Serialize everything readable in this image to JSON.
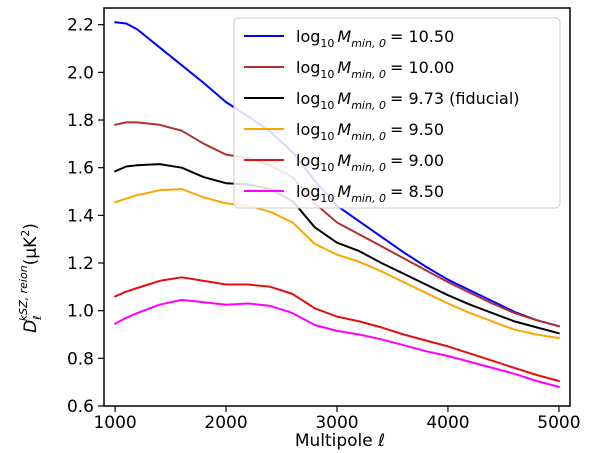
{
  "chart_data": {
    "type": "line",
    "xlabel": "Multipole ℓ",
    "ylabel": {
      "base": "D",
      "sub": "ℓ",
      "sup": "kSZ, reion",
      "unit_open": "(μK",
      "unit_pow": "2",
      "unit_close": ")"
    },
    "xlim": [
      900,
      5100
    ],
    "ylim": [
      0.6,
      2.27
    ],
    "xticks": [
      1000,
      2000,
      3000,
      4000,
      5000
    ],
    "yticks": [
      0.6,
      0.8,
      1.0,
      1.2,
      1.4,
      1.6,
      1.8,
      2.0,
      2.2
    ],
    "ytick_labels": [
      "0.6",
      "0.8",
      "1.0",
      "1.2",
      "1.4",
      "1.6",
      "1.8",
      "2.0",
      "2.2"
    ],
    "legend_placement": "top-right",
    "grid": false,
    "series": [
      {
        "name": "log10 Mmin,0 = 10.50",
        "legend_value": "= 10.50",
        "color": "#0000ff",
        "x": [
          1000,
          1100,
          1200,
          1400,
          1600,
          1800,
          2000,
          2200,
          2400,
          2600,
          2800,
          3000,
          3200,
          3400,
          3600,
          3800,
          4000,
          4200,
          4400,
          4600,
          4800,
          5000
        ],
        "y": [
          2.21,
          2.205,
          2.18,
          2.105,
          2.03,
          1.955,
          1.875,
          1.815,
          1.75,
          1.665,
          1.545,
          1.44,
          1.375,
          1.31,
          1.245,
          1.185,
          1.13,
          1.085,
          1.04,
          0.995,
          0.96,
          0.935
        ]
      },
      {
        "name": "log10 Mmin,0 = 10.00",
        "legend_value": "= 10.00",
        "color": "#b03030",
        "x": [
          1000,
          1100,
          1200,
          1400,
          1600,
          1800,
          2000,
          2200,
          2400,
          2600,
          2800,
          3000,
          3200,
          3400,
          3600,
          3800,
          4000,
          4200,
          4400,
          4600,
          4800,
          5000
        ],
        "y": [
          1.78,
          1.79,
          1.79,
          1.78,
          1.755,
          1.7,
          1.655,
          1.64,
          1.61,
          1.56,
          1.45,
          1.37,
          1.32,
          1.27,
          1.22,
          1.17,
          1.12,
          1.075,
          1.03,
          0.99,
          0.96,
          0.935
        ]
      },
      {
        "name": "log10 Mmin,0 = 9.73 (fiducial)",
        "legend_value": "= 9.73 (fiducial)",
        "color": "#000000",
        "x": [
          1000,
          1100,
          1200,
          1400,
          1600,
          1800,
          2000,
          2200,
          2400,
          2600,
          2800,
          3000,
          3200,
          3400,
          3600,
          3800,
          4000,
          4200,
          4400,
          4600,
          4800,
          5000
        ],
        "y": [
          1.585,
          1.605,
          1.61,
          1.615,
          1.6,
          1.56,
          1.535,
          1.53,
          1.51,
          1.46,
          1.35,
          1.285,
          1.25,
          1.2,
          1.155,
          1.11,
          1.065,
          1.025,
          0.99,
          0.955,
          0.93,
          0.905
        ]
      },
      {
        "name": "log10 Mmin,0 = 9.50",
        "legend_value": "= 9.50",
        "color": "#ffa500",
        "x": [
          1000,
          1100,
          1200,
          1400,
          1600,
          1800,
          2000,
          2200,
          2400,
          2600,
          2800,
          3000,
          3200,
          3400,
          3600,
          3800,
          4000,
          4200,
          4400,
          4600,
          4800,
          5000
        ],
        "y": [
          1.455,
          1.47,
          1.485,
          1.505,
          1.51,
          1.475,
          1.45,
          1.44,
          1.415,
          1.37,
          1.28,
          1.235,
          1.205,
          1.165,
          1.12,
          1.075,
          1.03,
          0.99,
          0.955,
          0.92,
          0.9,
          0.885
        ]
      },
      {
        "name": "log10 Mmin,0 = 9.00",
        "legend_value": "= 9.00",
        "color": "#e01010",
        "x": [
          1000,
          1100,
          1200,
          1400,
          1600,
          1800,
          2000,
          2200,
          2400,
          2600,
          2800,
          3000,
          3200,
          3400,
          3600,
          3800,
          4000,
          4200,
          4400,
          4600,
          4800,
          5000
        ],
        "y": [
          1.06,
          1.08,
          1.095,
          1.125,
          1.14,
          1.125,
          1.11,
          1.11,
          1.1,
          1.07,
          1.01,
          0.975,
          0.955,
          0.93,
          0.9,
          0.875,
          0.85,
          0.82,
          0.79,
          0.76,
          0.73,
          0.705
        ]
      },
      {
        "name": "log10 Mmin,0 = 8.50",
        "legend_value": "= 8.50",
        "color": "#ff00ff",
        "x": [
          1000,
          1100,
          1200,
          1400,
          1600,
          1800,
          2000,
          2200,
          2400,
          2600,
          2800,
          3000,
          3200,
          3400,
          3600,
          3800,
          4000,
          4200,
          4400,
          4600,
          4800,
          5000
        ],
        "y": [
          0.945,
          0.97,
          0.99,
          1.025,
          1.045,
          1.035,
          1.025,
          1.03,
          1.02,
          0.99,
          0.94,
          0.915,
          0.9,
          0.88,
          0.855,
          0.83,
          0.81,
          0.785,
          0.76,
          0.735,
          0.705,
          0.68
        ]
      }
    ]
  }
}
